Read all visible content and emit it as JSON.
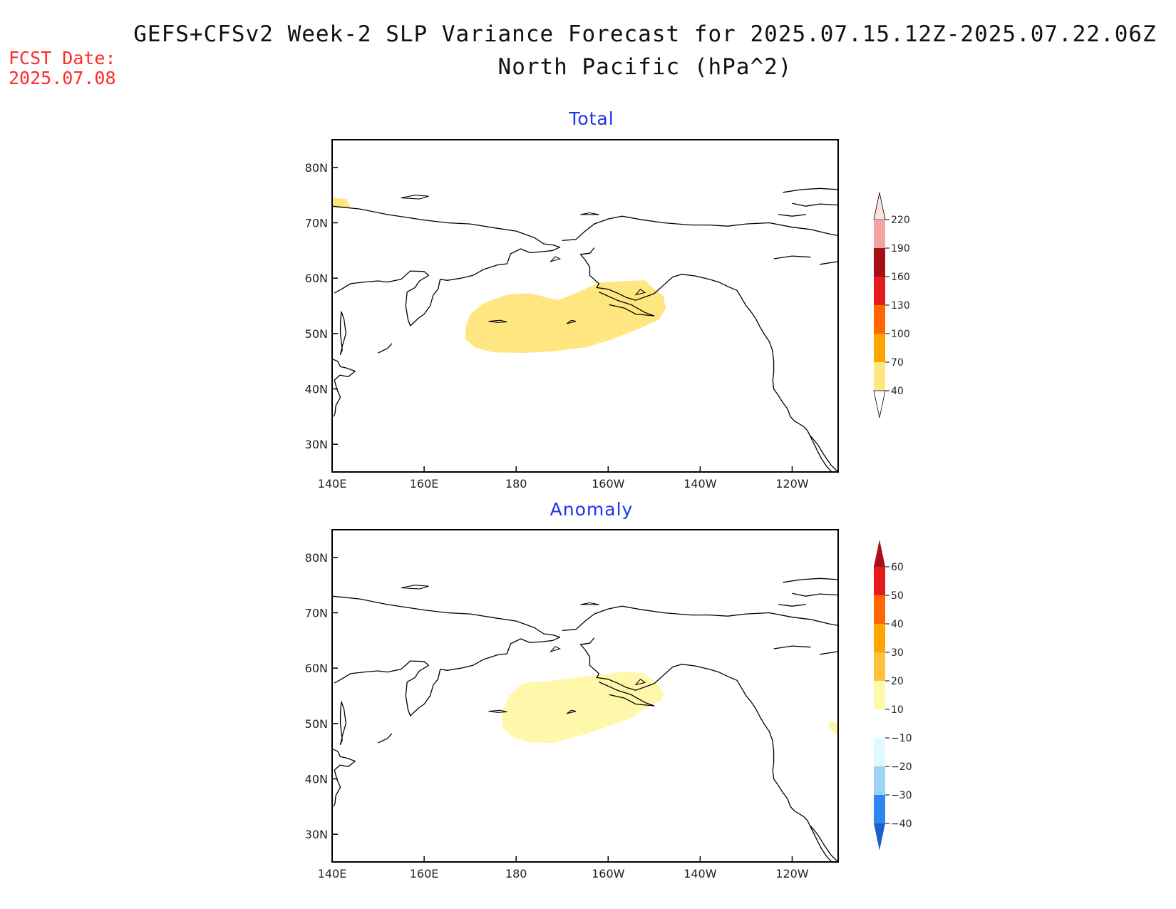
{
  "header": {
    "title_line1": "GEFS+CFSv2 Week-2 SLP Variance Forecast for 2025.07.15.12Z-2025.07.22.06Z",
    "title_line2": "North Pacific (hPa^2)",
    "fcst_label": "FCST Date:",
    "fcst_date": "2025.07.08"
  },
  "map": {
    "lat_labels": [
      "80N",
      "70N",
      "60N",
      "50N",
      "40N",
      "30N"
    ],
    "lon_labels": [
      "140E",
      "160E",
      "180",
      "160W",
      "140W",
      "120W"
    ],
    "lat_values": [
      80,
      70,
      60,
      50,
      40,
      30
    ],
    "lon_values": [
      140,
      160,
      180,
      200,
      220,
      240
    ],
    "lon_range": [
      140,
      250
    ],
    "lat_range": [
      25,
      85
    ]
  },
  "panels": [
    {
      "title": "Total",
      "fill_color": "#ffe680",
      "colorbar": {
        "labels": [
          "220",
          "190",
          "160",
          "130",
          "100",
          "70",
          "40"
        ],
        "colors": [
          "#fde2e2",
          "#f3a3a3",
          "#a50f15",
          "#e41a1c",
          "#ff6600",
          "#ffa500",
          "#ffe680"
        ]
      }
    },
    {
      "title": "Anomaly",
      "fill_color": "#fff7aa",
      "colorbar": {
        "labels": [
          "60",
          "50",
          "40",
          "30",
          "20",
          "10",
          "-10",
          "-20",
          "-30",
          "-40"
        ],
        "colors": [
          "#a50f15",
          "#e41a1c",
          "#ff6600",
          "#ffa500",
          "#ffc13b",
          "#fff7aa",
          "#ffffff",
          "#e0f8ff",
          "#9cd3f7",
          "#2f86ef",
          "#1a5fd0"
        ]
      }
    }
  ]
}
